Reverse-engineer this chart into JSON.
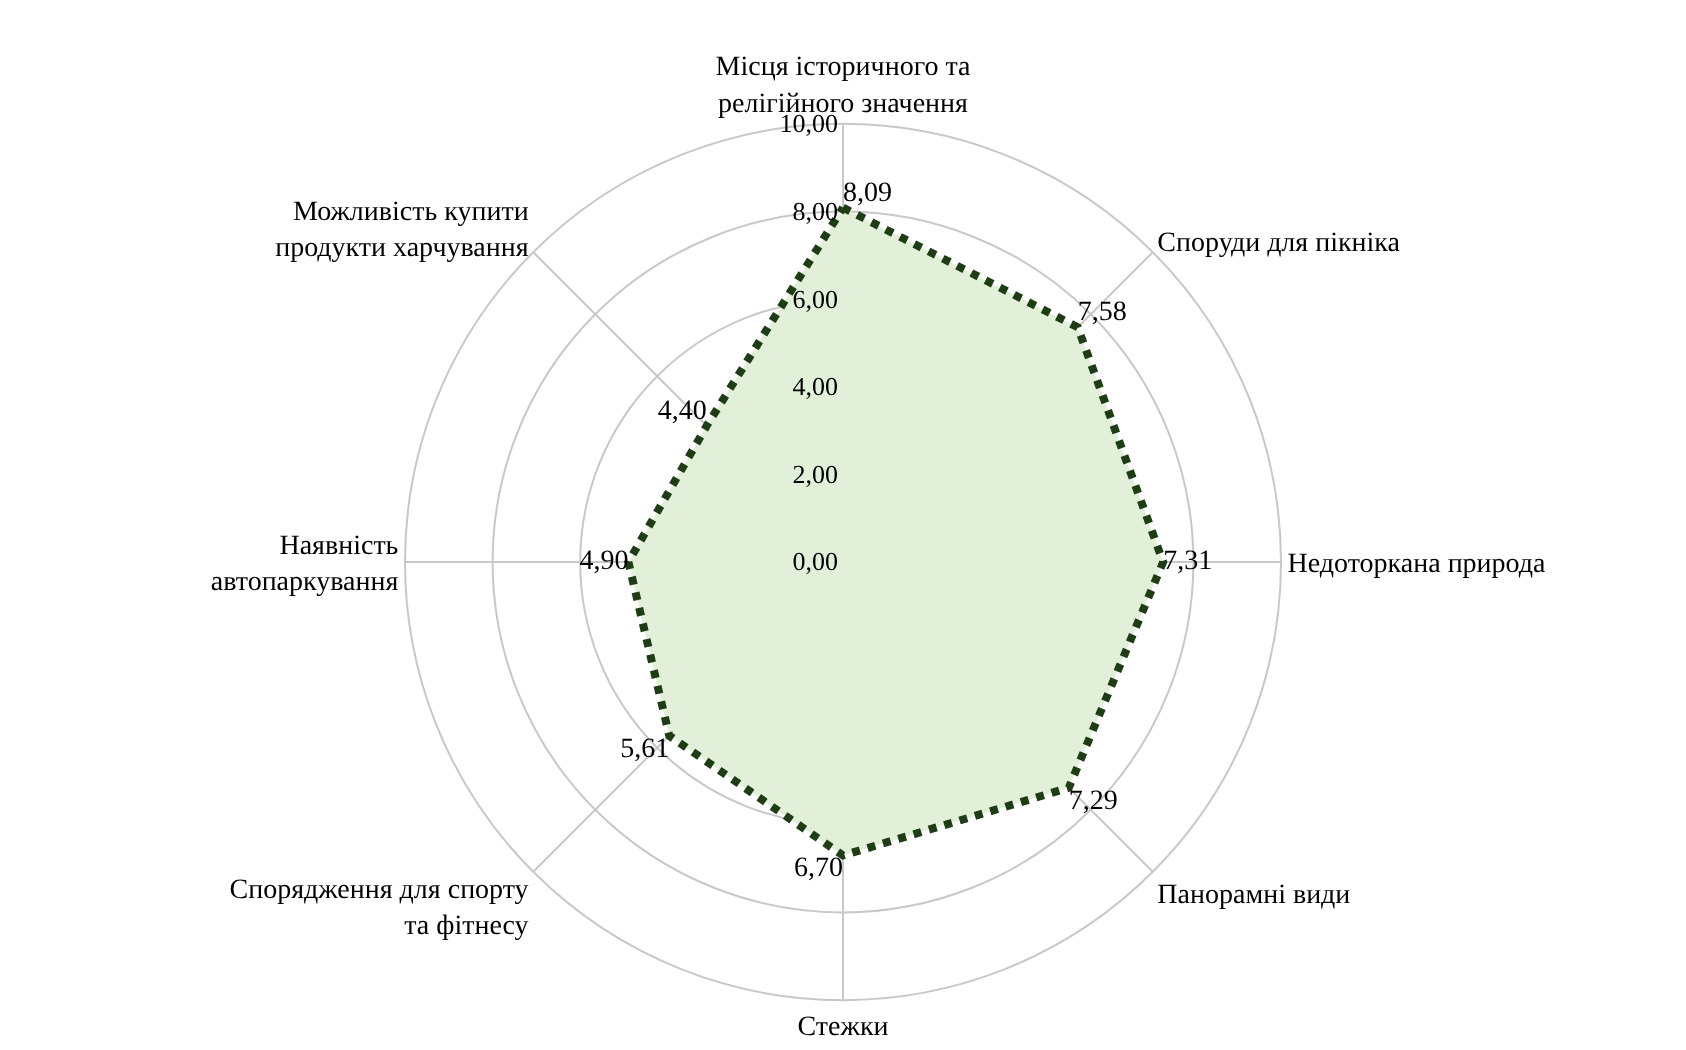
{
  "chart_data": {
    "type": "radar",
    "categories": [
      "Місця історичного та релігійного значення",
      "Споруди для пікніка",
      "Недоторкана природа",
      "Панорамні види",
      "Стежки",
      "Спорядження для спорту та фітнесу",
      "Наявність автопаркування",
      "Можливість купити продукти харчування"
    ],
    "series": [
      {
        "color": "#1e3d14",
        "values": [
          8.09,
          7.58,
          7.31,
          7.29,
          6.7,
          5.61,
          4.9,
          4.4
        ],
        "value_labels": [
          "8,09",
          "7,58",
          "7,31",
          "7,29",
          "6,70",
          "5,61",
          "4,90",
          "4,40"
        ]
      }
    ],
    "ylim": [
      0,
      10
    ],
    "yticks": [
      {
        "value": 0,
        "label": "0,00"
      },
      {
        "value": 2,
        "label": "2,00"
      },
      {
        "value": 4,
        "label": "4,00"
      },
      {
        "value": 6,
        "label": "6,00"
      },
      {
        "value": 8,
        "label": "8,00"
      },
      {
        "value": 10,
        "label": "10,00"
      }
    ],
    "line_style": "dotted",
    "marker": "none",
    "grid": true
  }
}
